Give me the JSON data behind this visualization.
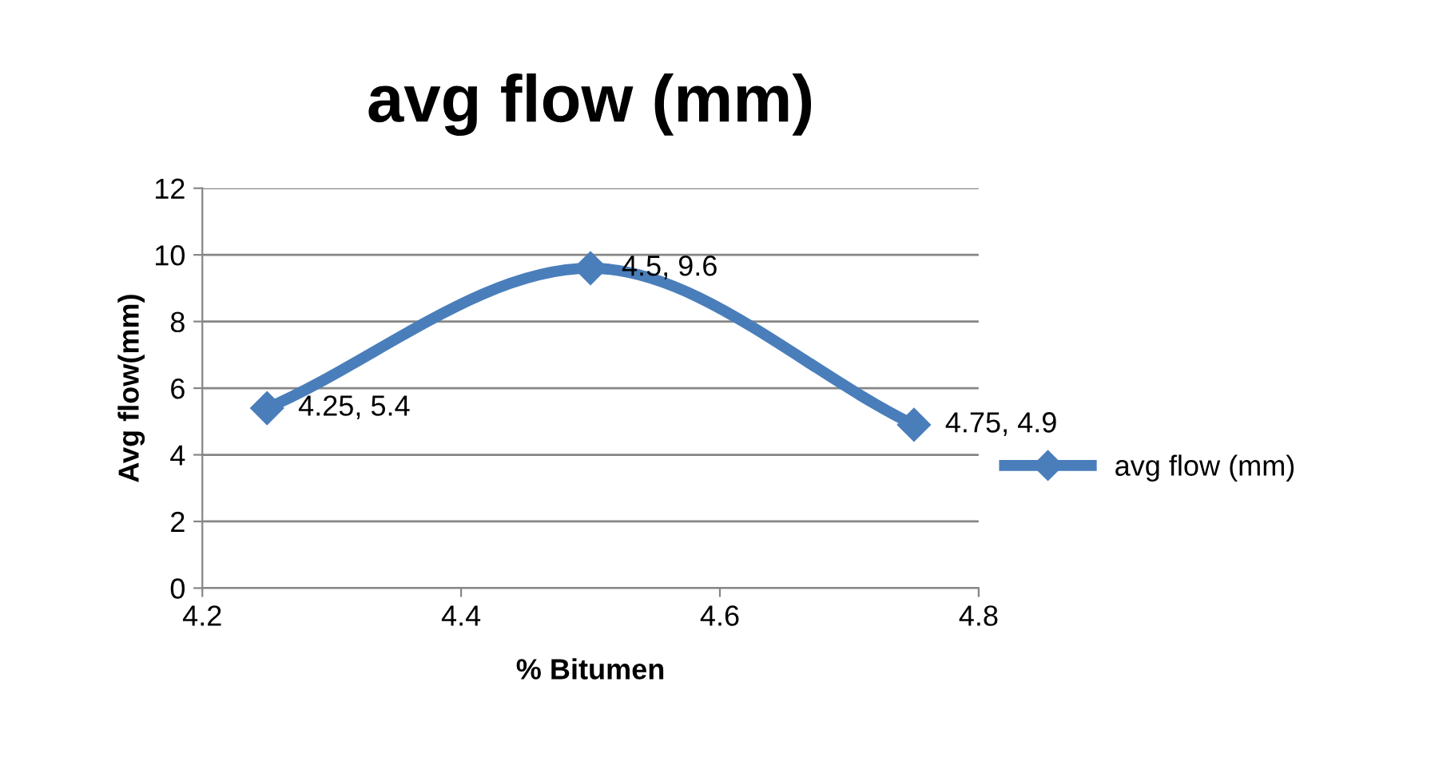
{
  "chart_data": {
    "type": "line",
    "title": "avg flow (mm)",
    "xlabel": "% Bitumen",
    "ylabel": "Avg flow(mm)",
    "x": [
      4.25,
      4.5,
      4.75
    ],
    "series": [
      {
        "name": "avg flow (mm)",
        "color": "#4a7ebb",
        "values": [
          5.4,
          9.6,
          4.9
        ],
        "value_labels": [
          "4.25, 5.4",
          "4.5, 9.6",
          "4.75, 4.9"
        ]
      }
    ],
    "xlim": [
      4.2,
      4.8
    ],
    "xticks": [
      4.2,
      4.4,
      4.6,
      4.8
    ],
    "ylim": [
      0,
      12
    ],
    "yticks": [
      0,
      2,
      4,
      6,
      8,
      10,
      12
    ],
    "grid": "y",
    "legend": "right",
    "marker": "diamond",
    "line_style": "solid"
  }
}
